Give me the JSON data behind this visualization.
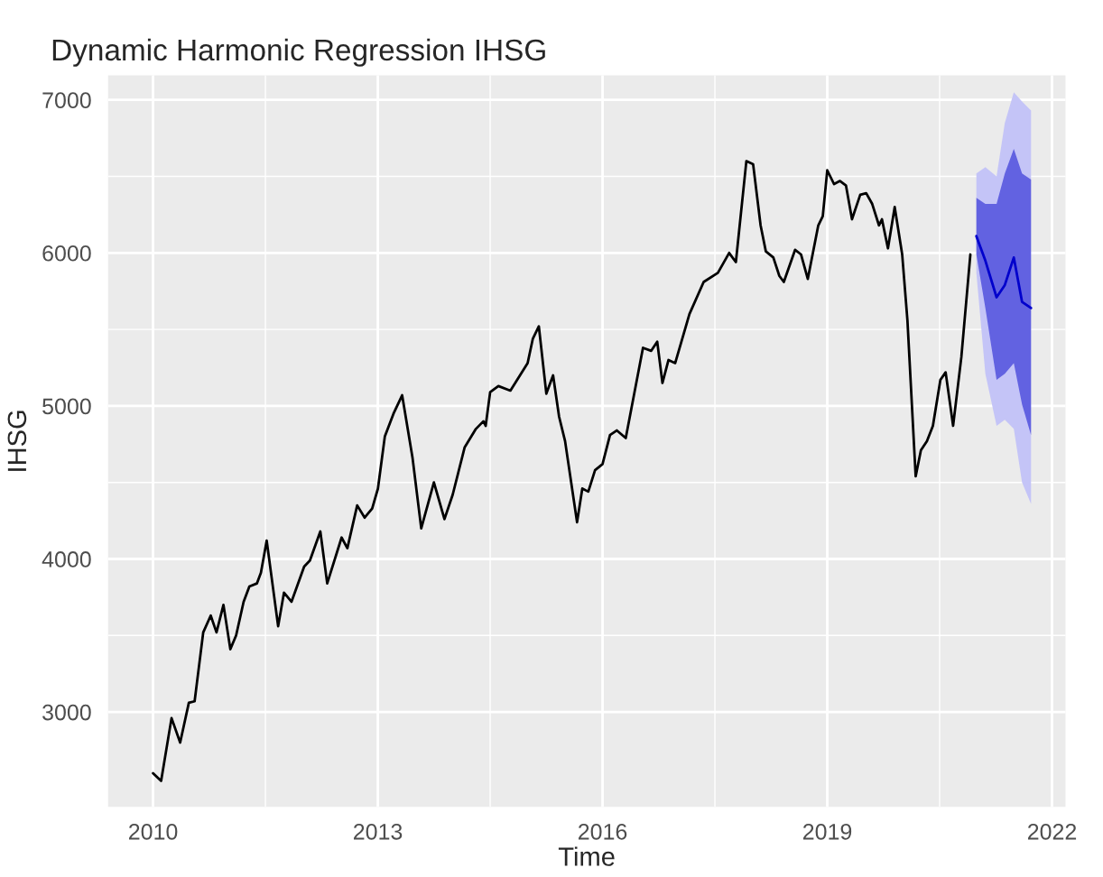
{
  "chart_data": {
    "type": "line",
    "title": "Dynamic Harmonic Regression IHSG",
    "xlabel": "Time",
    "ylabel": "IHSG",
    "xlim": [
      2009.4,
      2022.18
    ],
    "xticks": [
      2010,
      2013,
      2016,
      2019,
      2022
    ],
    "ylim": [
      2380,
      7160
    ],
    "yticks": [
      3000,
      4000,
      5000,
      6000,
      7000
    ],
    "grid": true,
    "legend": false,
    "series": [
      {
        "color": "#000000",
        "x": [
          2010.0,
          2010.108,
          2010.247,
          2010.362,
          2010.478,
          2010.555,
          2010.67,
          2010.77,
          2010.847,
          2010.94,
          2011.032,
          2011.109,
          2011.209,
          2011.286,
          2011.386,
          2011.44,
          2011.517,
          2011.67,
          2011.748,
          2011.848,
          2012.017,
          2012.094,
          2012.233,
          2012.325,
          2012.517,
          2012.594,
          2012.725,
          2012.825,
          2012.925,
          2013.002,
          2013.094,
          2013.21,
          2013.325,
          2013.464,
          2013.58,
          2013.749,
          2013.89,
          2014.0,
          2014.16,
          2014.31,
          2014.41,
          2014.44,
          2014.5,
          2014.61,
          2014.77,
          2015.0,
          2015.07,
          2015.15,
          2015.25,
          2015.34,
          2015.42,
          2015.5,
          2015.66,
          2015.73,
          2015.81,
          2015.9,
          2016.0,
          2016.1,
          2016.19,
          2016.31,
          2016.54,
          2016.65,
          2016.73,
          2016.8,
          2016.88,
          2016.97,
          2017.16,
          2017.35,
          2017.54,
          2017.69,
          2017.78,
          2017.92,
          2018.01,
          2018.11,
          2018.18,
          2018.28,
          2018.36,
          2018.42,
          2018.57,
          2018.65,
          2018.74,
          2018.88,
          2018.94,
          2019.0,
          2019.09,
          2019.17,
          2019.25,
          2019.33,
          2019.44,
          2019.52,
          2019.6,
          2019.69,
          2019.73,
          2019.81,
          2019.9,
          2020.0,
          2020.07,
          2020.18,
          2020.25,
          2020.33,
          2020.41,
          2020.51,
          2020.58,
          2020.68,
          2020.79,
          2020.91
        ],
        "values": [
          2600,
          2550,
          2960,
          2800,
          3060,
          3070,
          3520,
          3630,
          3520,
          3700,
          3410,
          3500,
          3720,
          3820,
          3840,
          3910,
          4120,
          3560,
          3780,
          3720,
          3950,
          3990,
          4180,
          3840,
          4140,
          4070,
          4350,
          4270,
          4330,
          4460,
          4800,
          4950,
          5070,
          4660,
          4200,
          4500,
          4260,
          4420,
          4730,
          4850,
          4900,
          4870,
          5090,
          5130,
          5100,
          5280,
          5440,
          5520,
          5080,
          5200,
          4930,
          4770,
          4240,
          4460,
          4440,
          4580,
          4620,
          4810,
          4840,
          4790,
          5380,
          5360,
          5420,
          5150,
          5300,
          5280,
          5600,
          5810,
          5870,
          6000,
          5940,
          6600,
          6580,
          6180,
          6010,
          5970,
          5850,
          5810,
          6020,
          5990,
          5830,
          6180,
          6240,
          6540,
          6450,
          6470,
          6440,
          6220,
          6380,
          6390,
          6320,
          6180,
          6220,
          6030,
          6300,
          5990,
          5560,
          4540,
          4710,
          4770,
          4870,
          5170,
          5220,
          4870,
          5320,
          5990
        ]
      },
      {
        "color": "#c4c4f7",
        "x": [
          2020.99,
          2021.11,
          2021.26,
          2021.37,
          2021.49,
          2021.6,
          2021.72
        ],
        "values": [
          null,
          null,
          null,
          null,
          null,
          null,
          null
        ],
        "lower": [
          5870,
          5210,
          4870,
          4910,
          4850,
          4500,
          4360
        ],
        "upper": [
          6520,
          6560,
          6500,
          6850,
          7050,
          6990,
          6930
        ]
      },
      {
        "color": "#0000cc",
        "x": [
          2020.99,
          2021.11,
          2021.26,
          2021.37,
          2021.49,
          2021.6,
          2021.72
        ],
        "values": [
          6110,
          5950,
          5710,
          5790,
          5970,
          5680,
          5640
        ],
        "lower": [
          5990,
          5640,
          5170,
          5210,
          5280,
          5010,
          4810
        ],
        "upper": [
          6360,
          6320,
          6320,
          6520,
          6680,
          6520,
          6480
        ]
      }
    ]
  }
}
